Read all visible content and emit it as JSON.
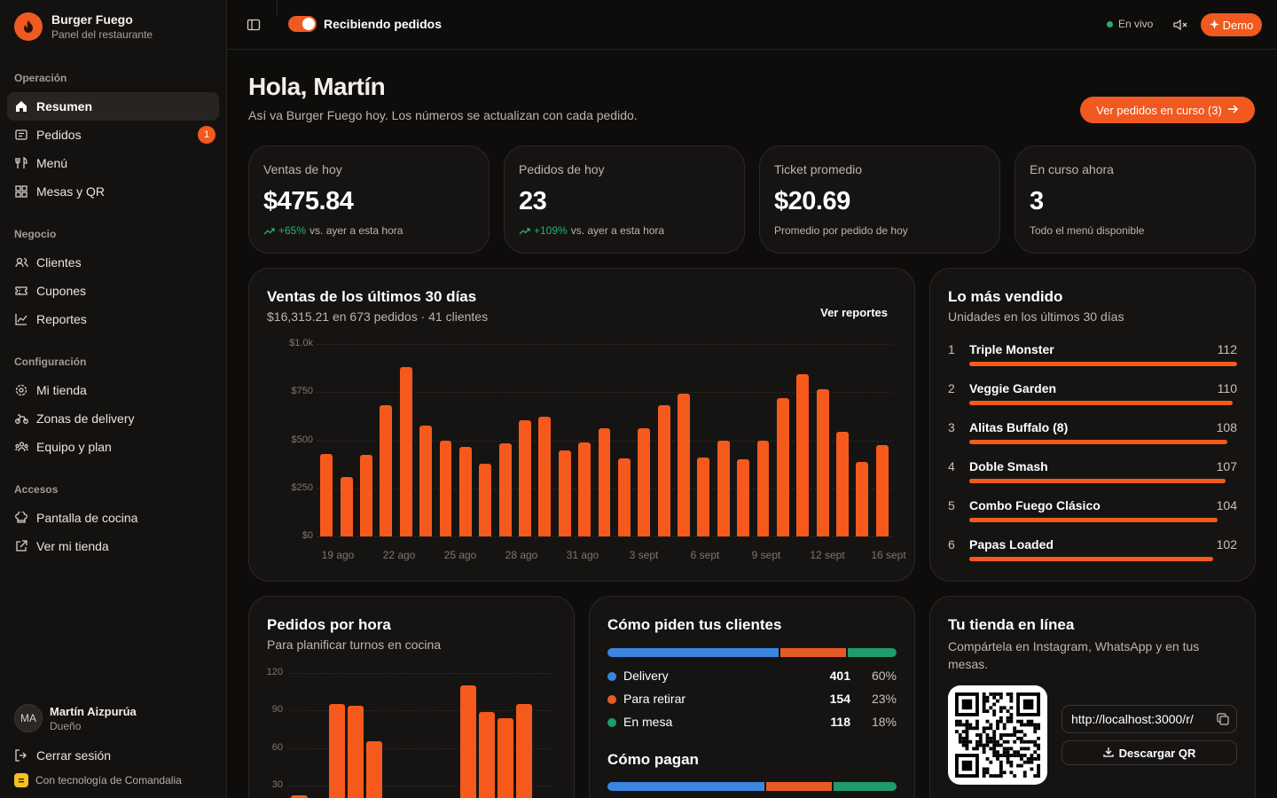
{
  "brand": {
    "name": "Burger Fuego",
    "subtitle": "Panel del restaurante"
  },
  "sidebar": {
    "sections": [
      {
        "title": "Operación",
        "items": [
          {
            "label": "Resumen",
            "icon": "home-icon",
            "active": true
          },
          {
            "label": "Pedidos",
            "icon": "list-icon",
            "badge": "1"
          },
          {
            "label": "Menú",
            "icon": "utensils-icon"
          },
          {
            "label": "Mesas y QR",
            "icon": "grid-icon"
          }
        ]
      },
      {
        "title": "Negocio",
        "items": [
          {
            "label": "Clientes",
            "icon": "users-icon"
          },
          {
            "label": "Cupones",
            "icon": "ticket-icon"
          },
          {
            "label": "Reportes",
            "icon": "trend-icon"
          }
        ]
      },
      {
        "title": "Configuración",
        "items": [
          {
            "label": "Mi tienda",
            "icon": "gear-icon"
          },
          {
            "label": "Zonas de delivery",
            "icon": "bike-icon"
          },
          {
            "label": "Equipo y plan",
            "icon": "team-icon"
          }
        ]
      },
      {
        "title": "Accesos",
        "items": [
          {
            "label": "Pantalla de cocina",
            "icon": "chef-hat-icon"
          },
          {
            "label": "Ver mi tienda",
            "icon": "external-link-icon"
          }
        ]
      }
    ],
    "user": {
      "initials": "MA",
      "name": "Martín Aizpurúa",
      "role": "Dueño"
    },
    "logout": "Cerrar sesión",
    "powered_by": "Con tecnología de Comandalia"
  },
  "topbar": {
    "toggle_label": "Recibiendo pedidos",
    "toggle_on": true,
    "live_label": "En vivo",
    "demo_label": "Demo"
  },
  "header": {
    "greeting": "Hola, Martín",
    "subtitle": "Así va Burger Fuego hoy. Los números se actualizan con cada pedido.",
    "cta": "Ver pedidos en curso (3)"
  },
  "kpis": [
    {
      "label": "Ventas de hoy",
      "value": "$475.84",
      "delta": "+65%",
      "foot": "vs. ayer a esta hora"
    },
    {
      "label": "Pedidos de hoy",
      "value": "23",
      "delta": "+109%",
      "foot": "vs. ayer a esta hora"
    },
    {
      "label": "Ticket promedio",
      "value": "$20.69",
      "delta": "",
      "foot": "Promedio por pedido de hoy"
    },
    {
      "label": "En curso ahora",
      "value": "3",
      "delta": "",
      "foot": "Todo el menú disponible"
    }
  ],
  "sales_card": {
    "title": "Ventas de los últimos 30 días",
    "subtitle": "$16,315.21 en 673 pedidos · 41 clientes",
    "link": "Ver reportes"
  },
  "top_sellers": {
    "title": "Lo más vendido",
    "subtitle": "Unidades en los últimos 30 días",
    "items": [
      {
        "rank": "1",
        "name": "Triple Monster",
        "units": 112
      },
      {
        "rank": "2",
        "name": "Veggie Garden",
        "units": 110
      },
      {
        "rank": "3",
        "name": "Alitas Buffalo (8)",
        "units": 108
      },
      {
        "rank": "4",
        "name": "Doble Smash",
        "units": 107
      },
      {
        "rank": "5",
        "name": "Combo Fuego Clásico",
        "units": 104
      },
      {
        "rank": "6",
        "name": "Papas Loaded",
        "units": 102
      }
    ]
  },
  "hourly_card": {
    "title": "Pedidos por hora",
    "subtitle": "Para planificar turnos en cocina"
  },
  "channels": {
    "title": "Cómo piden tus clientes",
    "items": [
      {
        "name": "Delivery",
        "count": "401",
        "pct": "60%",
        "share": 0.6,
        "color": "#3a85e0"
      },
      {
        "name": "Para retirar",
        "count": "154",
        "pct": "23%",
        "share": 0.23,
        "color": "#e45b26"
      },
      {
        "name": "En mesa",
        "count": "118",
        "pct": "18%",
        "share": 0.17,
        "color": "#1f9b6c"
      }
    ],
    "payments_title": "Cómo pagan",
    "payments": [
      {
        "share": 0.55,
        "color": "#3a85e0"
      },
      {
        "share": 0.23,
        "color": "#e45b26"
      },
      {
        "share": 0.22,
        "color": "#1f9b6c"
      }
    ]
  },
  "store": {
    "title": "Tu tienda en línea",
    "subtitle": "Compártela en Instagram, WhatsApp y en tus mesas.",
    "url": "http://localhost:3000/r/",
    "download": "Descargar QR"
  },
  "chart_data": [
    {
      "type": "bar",
      "title": "Ventas de los últimos 30 días",
      "x_ticks": [
        "19 ago",
        "22 ago",
        "25 ago",
        "28 ago",
        "31 ago",
        "3 sept",
        "6 sept",
        "9 sept",
        "12 sept",
        "16 sept"
      ],
      "y_ticks": [
        "$1.0k",
        "$750",
        "$500",
        "$250",
        "$0"
      ],
      "ylim": [
        0,
        1000
      ],
      "values": [
        430,
        310,
        425,
        680,
        880,
        575,
        500,
        465,
        380,
        485,
        605,
        620,
        445,
        490,
        560,
        405,
        560,
        680,
        740,
        410,
        500,
        400,
        500,
        720,
        845,
        765,
        545,
        385,
        475
      ],
      "color": "#f55a1c",
      "grid": true
    },
    {
      "type": "bar",
      "title": "Pedidos por hora",
      "y_ticks": [
        "120",
        "90",
        "60",
        "30"
      ],
      "ylim": [
        0,
        120
      ],
      "values": [
        22,
        0,
        95,
        94,
        65,
        0,
        0,
        0,
        0,
        110,
        89,
        84,
        95,
        14
      ],
      "color": "#f55a1c",
      "grid": true
    }
  ]
}
